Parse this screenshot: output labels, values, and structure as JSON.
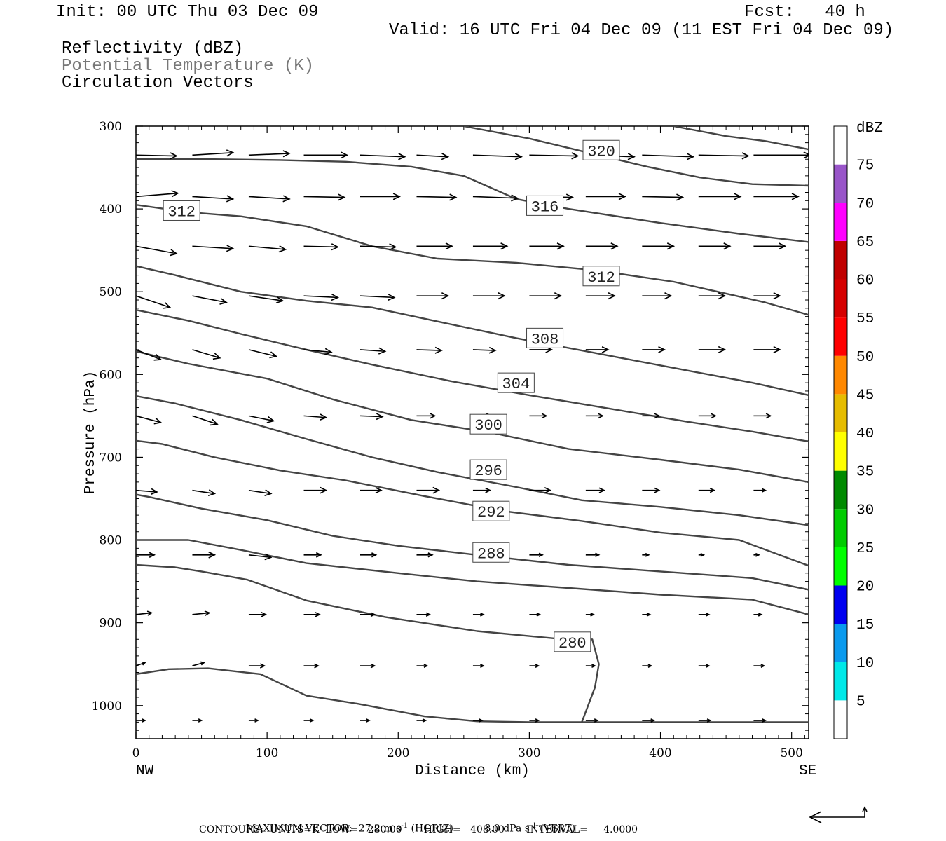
{
  "header": {
    "init": "Init: 00 UTC Thu 03 Dec 09",
    "fcst": "Fcst:   40 h",
    "valid": "Valid: 16 UTC Fri 04 Dec 09 (11 EST Fri 04 Dec 09)",
    "field1": "Reflectivity (dBZ)",
    "field2": "Potential Temperature (K)",
    "field3": "Circulation Vectors"
  },
  "colors": {
    "field2_text": "#777777",
    "contour": "#444444",
    "vector": "#000000",
    "dbz_scale": [
      "#ffffff",
      "#00e8e8",
      "#0a9aee",
      "#0000f0",
      "#00ff00",
      "#00cc00",
      "#008a00",
      "#ffff00",
      "#e6bc00",
      "#ff8800",
      "#ff0000",
      "#d60000",
      "#c00000",
      "#ff00ff",
      "#9955c9",
      "#ffffff"
    ]
  },
  "chart_data": {
    "type": "cross-section",
    "xlabel": "Distance (km)",
    "ylabel": "Pressure (hPa)",
    "xlim": [
      0,
      513
    ],
    "ylim": [
      1040,
      300
    ],
    "x_ticks": [
      "0",
      "100",
      "200",
      "300",
      "400",
      "500"
    ],
    "y_ticks": [
      "300",
      "400",
      "500",
      "600",
      "700",
      "800",
      "900",
      "1000"
    ],
    "x_end_labels": {
      "left": "NW",
      "right": "SE"
    },
    "colorbar": {
      "title": "dBZ",
      "levels": [
        "5",
        "10",
        "15",
        "20",
        "25",
        "30",
        "35",
        "40",
        "45",
        "50",
        "55",
        "60",
        "65",
        "70",
        "75"
      ]
    },
    "contours": [
      {
        "level": 280,
        "label": "280",
        "label_at": [
          320,
          923
        ],
        "points": [
          [
            0,
            962
          ],
          [
            25,
            956
          ],
          [
            55,
            955
          ],
          [
            95,
            962
          ],
          [
            130,
            988
          ],
          [
            170,
            998
          ],
          [
            220,
            1013
          ],
          [
            260,
            1019
          ],
          [
            300,
            1020
          ],
          [
            340,
            1020
          ]
        ]
      },
      {
        "level": 280,
        "label": "",
        "points": [
          [
            0,
            830
          ],
          [
            30,
            833
          ],
          [
            50,
            838
          ],
          [
            85,
            848
          ],
          [
            130,
            873
          ],
          [
            190,
            893
          ],
          [
            260,
            910
          ],
          [
            320,
            919
          ],
          [
            348,
            920
          ],
          [
            353,
            950
          ],
          [
            350,
            978
          ],
          [
            340,
            1020
          ],
          [
            513,
            1020
          ]
        ]
      },
      {
        "level": 288,
        "label": "288",
        "label_at": [
          258,
          815
        ],
        "points": [
          [
            0,
            800
          ],
          [
            40,
            800
          ],
          [
            80,
            812
          ],
          [
            130,
            828
          ],
          [
            200,
            840
          ],
          [
            260,
            850
          ],
          [
            330,
            858
          ],
          [
            400,
            866
          ],
          [
            470,
            872
          ],
          [
            513,
            890
          ]
        ]
      },
      {
        "level": 292,
        "label": "292",
        "label_at": [
          258,
          765
        ],
        "points": [
          [
            0,
            745
          ],
          [
            10,
            748
          ],
          [
            50,
            762
          ],
          [
            100,
            776
          ],
          [
            150,
            795
          ],
          [
            200,
            807
          ],
          [
            260,
            818
          ],
          [
            330,
            830
          ],
          [
            400,
            838
          ],
          [
            470,
            846
          ],
          [
            513,
            860
          ]
        ]
      },
      {
        "level": 296,
        "label": "296",
        "label_at": [
          256,
          715
        ],
        "points": [
          [
            0,
            680
          ],
          [
            20,
            684
          ],
          [
            60,
            700
          ],
          [
            110,
            716
          ],
          [
            160,
            728
          ],
          [
            220,
            747
          ],
          [
            280,
            765
          ],
          [
            340,
            777
          ],
          [
            400,
            791
          ],
          [
            460,
            800
          ],
          [
            513,
            831
          ]
        ]
      },
      {
        "level": 300,
        "label": "300",
        "label_at": [
          256,
          660
        ],
        "points": [
          [
            0,
            626
          ],
          [
            30,
            635
          ],
          [
            80,
            655
          ],
          [
            130,
            678
          ],
          [
            180,
            700
          ],
          [
            230,
            718
          ],
          [
            290,
            736
          ],
          [
            340,
            752
          ],
          [
            400,
            760
          ],
          [
            460,
            770
          ],
          [
            513,
            782
          ]
        ]
      },
      {
        "level": 304,
        "label": "304",
        "label_at": [
          277,
          610
        ],
        "points": [
          [
            0,
            572
          ],
          [
            40,
            587
          ],
          [
            100,
            605
          ],
          [
            150,
            630
          ],
          [
            210,
            655
          ],
          [
            270,
            670
          ],
          [
            330,
            690
          ],
          [
            400,
            703
          ],
          [
            460,
            715
          ],
          [
            513,
            730
          ]
        ]
      },
      {
        "level": 308,
        "label": "308",
        "label_at": [
          299,
          556
        ],
        "points": [
          [
            0,
            522
          ],
          [
            40,
            535
          ],
          [
            80,
            551
          ],
          [
            130,
            570
          ],
          [
            180,
            588
          ],
          [
            240,
            608
          ],
          [
            300,
            625
          ],
          [
            360,
            641
          ],
          [
            420,
            657
          ],
          [
            470,
            669
          ],
          [
            513,
            681
          ]
        ]
      },
      {
        "level": 312,
        "label": "312",
        "label_at": [
          342,
          481
        ],
        "points": [
          [
            0,
            469
          ],
          [
            30,
            480
          ],
          [
            80,
            500
          ],
          [
            130,
            511
          ],
          [
            180,
            519
          ],
          [
            230,
            536
          ],
          [
            290,
            556
          ],
          [
            350,
            574
          ],
          [
            410,
            592
          ],
          [
            470,
            610
          ],
          [
            513,
            625
          ]
        ]
      },
      {
        "level": 312,
        "label": "312",
        "label_at": [
          22,
          402
        ],
        "points": [
          [
            0,
            395
          ],
          [
            40,
            404
          ],
          [
            80,
            409
          ],
          [
            130,
            421
          ],
          [
            180,
            445
          ],
          [
            230,
            460
          ],
          [
            290,
            465
          ],
          [
            350,
            474
          ],
          [
            410,
            488
          ],
          [
            480,
            513
          ],
          [
            513,
            528
          ]
        ]
      },
      {
        "level": 316,
        "label": "316",
        "label_at": [
          299,
          396
        ],
        "points": [
          [
            0,
            340
          ],
          [
            60,
            340
          ],
          [
            110,
            341
          ],
          [
            160,
            343
          ],
          [
            210,
            349
          ],
          [
            250,
            360
          ],
          [
            290,
            388
          ],
          [
            330,
            400
          ],
          [
            400,
            417
          ],
          [
            460,
            430
          ],
          [
            513,
            440
          ]
        ]
      },
      {
        "level": 320,
        "label": "320",
        "label_at": [
          342,
          329
        ],
        "points": [
          [
            250,
            300
          ],
          [
            300,
            315
          ],
          [
            350,
            334
          ],
          [
            390,
            349
          ],
          [
            430,
            362
          ],
          [
            470,
            370
          ],
          [
            513,
            372
          ]
        ]
      },
      {
        "level": 324,
        "label": "",
        "points": [
          [
            410,
            300
          ],
          [
            450,
            312
          ],
          [
            480,
            318
          ],
          [
            513,
            328
          ]
        ]
      }
    ],
    "vector_rows": [
      {
        "p": 335,
        "x0": [
          0,
          43,
          86,
          128,
          171,
          214,
          257,
          300,
          343,
          386,
          429,
          471
        ],
        "dx": [
          31,
          31,
          31,
          33,
          34,
          24,
          37,
          37,
          37,
          39,
          38,
          43
        ],
        "dp": [
          1,
          -3,
          -2,
          0,
          2,
          2,
          2,
          1,
          2,
          2,
          1,
          0
        ]
      },
      {
        "p": 385,
        "x0": [
          0,
          43,
          86,
          128,
          171,
          214,
          257,
          300,
          343,
          386,
          429,
          471
        ],
        "dx": [
          32,
          31,
          31,
          31,
          30,
          30,
          34,
          33,
          30,
          31,
          32,
          34
        ],
        "dp": [
          -4,
          3,
          3,
          1,
          0,
          1,
          2,
          1,
          0,
          1,
          0,
          0
        ]
      },
      {
        "p": 445,
        "x0": [
          0,
          43,
          86,
          128,
          171,
          214,
          257,
          300,
          343,
          386,
          429,
          471
        ],
        "dx": [
          31,
          31,
          28,
          26,
          27,
          27,
          26,
          26,
          24,
          24,
          24,
          24
        ],
        "dp": [
          9,
          3,
          4,
          1,
          1,
          0,
          0,
          0,
          0,
          0,
          0,
          0
        ]
      },
      {
        "p": 505,
        "x0": [
          0,
          43,
          86,
          128,
          171,
          214,
          257,
          300,
          343,
          386,
          429,
          471
        ],
        "dx": [
          26,
          26,
          26,
          26,
          26,
          24,
          24,
          24,
          22,
          22,
          20,
          20
        ],
        "dp": [
          14,
          8,
          6,
          2,
          2,
          0,
          0,
          0,
          0,
          0,
          0,
          0
        ]
      },
      {
        "p": 570,
        "x0": [
          0,
          43,
          86,
          128,
          171,
          214,
          257,
          300,
          343,
          386,
          429,
          471
        ],
        "dx": [
          19,
          21,
          21,
          21,
          19,
          19,
          17,
          17,
          17,
          17,
          20,
          20
        ],
        "dp": [
          12,
          10,
          8,
          3,
          2,
          1,
          1,
          0,
          0,
          0,
          0,
          0
        ]
      },
      {
        "p": 650,
        "x0": [
          0,
          43,
          86,
          128,
          171,
          214,
          257,
          300,
          343,
          386,
          429,
          471
        ],
        "dx": [
          19,
          19,
          19,
          17,
          17,
          14,
          14,
          13,
          13,
          13,
          13,
          13
        ],
        "dp": [
          8,
          10,
          6,
          2,
          1,
          0,
          0,
          0,
          0,
          0,
          0,
          0
        ]
      },
      {
        "p": 740,
        "x0": [
          0,
          43,
          86,
          128,
          171,
          214,
          257,
          300,
          343,
          386,
          429,
          471
        ],
        "dx": [
          16,
          17,
          17,
          17,
          16,
          17,
          13,
          16,
          14,
          13,
          12,
          9
        ],
        "dp": [
          2,
          4,
          4,
          0,
          0,
          0,
          0,
          0,
          0,
          0,
          0,
          0
        ]
      },
      {
        "p": 818,
        "x0": [
          0,
          43,
          86,
          128,
          171,
          214,
          257,
          300,
          343,
          386,
          429,
          471
        ],
        "dx": [
          14,
          17,
          17,
          13,
          12,
          12,
          11,
          10,
          10,
          5,
          4,
          4
        ],
        "dp": [
          0,
          0,
          3,
          0,
          0,
          0,
          0,
          0,
          0,
          0,
          0,
          0
        ]
      },
      {
        "p": 890,
        "x0": [
          0,
          43,
          86,
          128,
          171,
          214,
          257,
          300,
          343,
          386,
          429,
          471
        ],
        "dx": [
          12,
          13,
          13,
          12,
          11,
          10,
          8,
          8,
          6,
          6,
          8,
          6
        ],
        "dp": [
          -2,
          -2,
          0,
          0,
          0,
          0,
          0,
          0,
          0,
          0,
          0,
          0
        ]
      },
      {
        "p": 952,
        "x0": [
          0,
          43,
          86,
          128,
          171,
          214,
          257,
          300,
          343,
          386,
          429,
          471
        ],
        "dx": [
          7,
          9,
          12,
          11,
          11,
          8,
          8,
          7,
          7,
          7,
          8,
          8
        ],
        "dp": [
          -4,
          -4,
          0,
          0,
          0,
          0,
          0,
          0,
          0,
          0,
          0,
          0
        ]
      },
      {
        "p": 1018,
        "x0": [
          0,
          43,
          86,
          128,
          171,
          214,
          257,
          300,
          343,
          386,
          429,
          471
        ],
        "dx": [
          7,
          7,
          7,
          7,
          7,
          7,
          7,
          7,
          9,
          9,
          9,
          9
        ],
        "dp": [
          0,
          0,
          0,
          0,
          0,
          0,
          0,
          0,
          0,
          0,
          0,
          0
        ]
      }
    ],
    "reference_vector": {
      "horiz": "27.2 m s-1",
      "vert": "8.0 dPa s-1"
    }
  },
  "footer": {
    "max_vector_label": "MAXIMUM VECTOR:",
    "max_vector_horiz": "27.2 m s",
    "max_vector_horiz_tag": "(HORIZ)",
    "max_vector_vert": "8.0 dPa s",
    "max_vector_vert_tag": "(VERT)",
    "exp": "-1",
    "contours_line": "CONTOURS:  UNITS=K  LOW=   280.00       HIGH=   408.00       INTERVAL=     4.0000"
  }
}
